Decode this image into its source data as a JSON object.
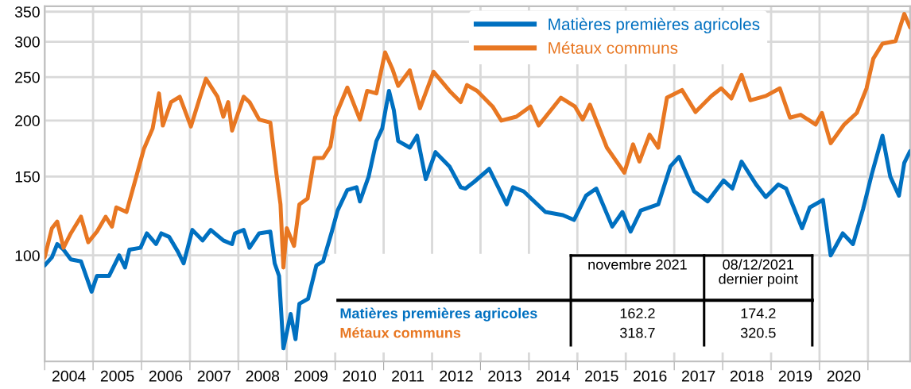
{
  "chart_data": {
    "type": "line",
    "series": [
      {
        "name": "Matières premières agricoles",
        "color": "#0070c0",
        "x": [
          2004.0,
          2004.15,
          2004.26,
          2004.39,
          2004.54,
          2004.75,
          2004.97,
          2005.08,
          2005.33,
          2005.54,
          2005.66,
          2005.75,
          2005.98,
          2006.11,
          2006.3,
          2006.41,
          2006.57,
          2006.75,
          2006.87,
          2007.05,
          2007.26,
          2007.43,
          2007.69,
          2007.87,
          2007.93,
          2008.11,
          2008.23,
          2008.43,
          2008.66,
          2008.75,
          2008.84,
          2008.93,
          2009.08,
          2009.18,
          2009.26,
          2009.44,
          2009.61,
          2009.75,
          2009.93,
          2010.05,
          2010.25,
          2010.44,
          2010.51,
          2010.69,
          2010.85,
          2010.97,
          2011.11,
          2011.21,
          2011.3,
          2011.54,
          2011.69,
          2011.87,
          2012.07,
          2012.36,
          2012.59,
          2012.69,
          2012.87,
          2013.18,
          2013.54,
          2013.67,
          2013.89,
          2014.34,
          2014.7,
          2014.93,
          2015.18,
          2015.39,
          2015.72,
          2015.93,
          2016.1,
          2016.31,
          2016.67,
          2016.92,
          2017.1,
          2017.41,
          2017.69,
          2018.02,
          2018.2,
          2018.39,
          2018.69,
          2018.89,
          2019.15,
          2019.31,
          2019.64,
          2019.8,
          2020.07,
          2020.23,
          2020.48,
          2020.69,
          2020.9,
          2021.08,
          2021.3,
          2021.46,
          2021.64,
          2021.75,
          2021.87
        ],
        "values": [
          95,
          99,
          106,
          103,
          98,
          97,
          83,
          90,
          90,
          100,
          94,
          103,
          104,
          112,
          106,
          112,
          110,
          102,
          96,
          114,
          108,
          114,
          108,
          106,
          112,
          114,
          104,
          112,
          113,
          96,
          90,
          62,
          74,
          65,
          78,
          80,
          95,
          97,
          113,
          126,
          140,
          142,
          132,
          150,
          180,
          192,
          233,
          211,
          180,
          174,
          185,
          148,
          170,
          158,
          142,
          141,
          146,
          156,
          130,
          142,
          139,
          125,
          123,
          120,
          136,
          141,
          116,
          125,
          113,
          126,
          130,
          158,
          166,
          139,
          132,
          147,
          141,
          162,
          144,
          135,
          144,
          141,
          115,
          128,
          133,
          100,
          112,
          106,
          127,
          152,
          185,
          150,
          136,
          161,
          171
        ]
      },
      {
        "name": "Métaux communs",
        "color": "#e87722",
        "x": [
          2004.0,
          2004.15,
          2004.26,
          2004.39,
          2004.54,
          2004.75,
          2004.9,
          2005.08,
          2005.26,
          2005.39,
          2005.48,
          2005.69,
          2005.9,
          2006.05,
          2006.23,
          2006.36,
          2006.44,
          2006.61,
          2006.79,
          2007.02,
          2007.21,
          2007.33,
          2007.57,
          2007.69,
          2007.79,
          2007.87,
          2008.11,
          2008.23,
          2008.43,
          2008.66,
          2008.79,
          2008.87,
          2008.93,
          2009.0,
          2009.15,
          2009.26,
          2009.43,
          2009.57,
          2009.75,
          2009.9,
          2010.0,
          2010.25,
          2010.51,
          2010.66,
          2010.85,
          2011.03,
          2011.18,
          2011.3,
          2011.54,
          2011.75,
          2012.03,
          2012.36,
          2012.59,
          2012.72,
          2012.93,
          2013.25,
          2013.43,
          2013.74,
          2014.03,
          2014.2,
          2014.66,
          2014.95,
          2015.11,
          2015.26,
          2015.61,
          2015.97,
          2016.15,
          2016.28,
          2016.49,
          2016.67,
          2016.85,
          2017.16,
          2017.44,
          2017.77,
          2017.97,
          2018.18,
          2018.39,
          2018.57,
          2018.89,
          2019.18,
          2019.39,
          2019.61,
          2019.92,
          2020.05,
          2020.23,
          2020.51,
          2020.77,
          2020.97,
          2021.11,
          2021.3,
          2021.57,
          2021.75,
          2021.87
        ],
        "values": [
          99,
          115,
          119,
          104,
          112,
          122,
          107,
          113,
          122,
          116,
          128,
          125,
          151,
          173,
          192,
          230,
          195,
          220,
          226,
          194,
          226,
          248,
          226,
          204,
          220,
          190,
          226,
          220,
          201,
          198,
          151,
          130,
          94,
          115,
          105,
          130,
          134,
          165,
          165,
          175,
          204,
          237,
          201,
          233,
          230,
          284,
          261,
          239,
          259,
          213,
          257,
          233,
          220,
          240,
          233,
          215,
          200,
          204,
          215,
          195,
          225,
          215,
          201,
          217,
          174,
          153,
          177,
          162,
          186,
          174,
          225,
          234,
          209,
          227,
          236,
          224,
          253,
          222,
          227,
          236,
          203,
          206,
          196,
          208,
          178,
          196,
          208,
          236,
          275,
          297,
          301,
          346,
          323
        ]
      }
    ],
    "log": "y",
    "xlim": [
      2004.0,
      2021.87
    ],
    "xticks": [
      {
        "value": 2004,
        "label": null
      },
      {
        "value": 2005,
        "label": null
      },
      {
        "value": 2006,
        "label": null
      },
      {
        "value": 2007,
        "label": null
      },
      {
        "value": 2008,
        "label": null
      },
      {
        "value": 2009,
        "label": null
      },
      {
        "value": 2010,
        "label": null
      },
      {
        "value": 2011,
        "label": null
      },
      {
        "value": 2012,
        "label": null
      },
      {
        "value": 2013,
        "label": null
      },
      {
        "value": 2014,
        "label": null
      },
      {
        "value": 2015,
        "label": null
      },
      {
        "value": 2016,
        "label": null
      },
      {
        "value": 2017,
        "label": null
      },
      {
        "value": 2018,
        "label": null
      },
      {
        "value": 2019,
        "label": null
      },
      {
        "value": 2020,
        "label": null
      },
      {
        "value": 2021,
        "label": null
      },
      {
        "value": 2004.5,
        "label": "2004"
      },
      {
        "value": 2005.5,
        "label": "2005"
      },
      {
        "value": 2006.5,
        "label": "2006"
      },
      {
        "value": 2007.5,
        "label": "2007"
      },
      {
        "value": 2008.5,
        "label": "2008"
      },
      {
        "value": 2009.5,
        "label": "2009"
      },
      {
        "value": 2010.5,
        "label": "2010"
      },
      {
        "value": 2011.5,
        "label": "2011"
      },
      {
        "value": 2012.5,
        "label": "2012"
      },
      {
        "value": 2013.5,
        "label": "2013"
      },
      {
        "value": 2014.5,
        "label": "2014"
      },
      {
        "value": 2015.5,
        "label": "2015"
      },
      {
        "value": 2016.5,
        "label": "2016"
      },
      {
        "value": 2017.5,
        "label": "2017"
      },
      {
        "value": 2018.5,
        "label": "2018"
      },
      {
        "value": 2019.5,
        "label": "2019"
      },
      {
        "value": 2020.5,
        "label": "2020"
      }
    ],
    "ylim": [
      58,
      360
    ],
    "yticks": [
      100,
      150,
      200,
      250,
      300,
      350
    ],
    "grid": true,
    "legend": "top right",
    "line_style": "solid",
    "marker": "none",
    "annotations": [
      "novembre 2021",
      "08/12/2021\ndernier point",
      "162.2",
      "174.2",
      "318.7",
      "320.5"
    ]
  }
}
